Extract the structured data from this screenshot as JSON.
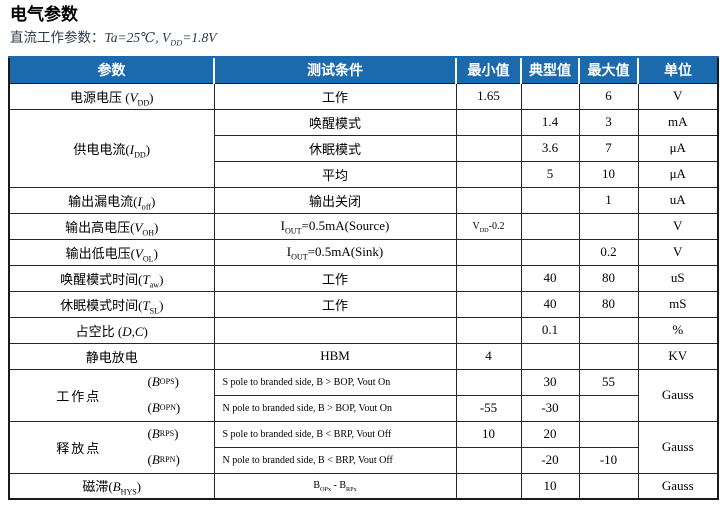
{
  "title": "电气参数",
  "subtitle": {
    "prefix": "直流工作参数：",
    "formula": "Ta=25℃, V_{DD}=1.8V"
  },
  "colors": {
    "header_bg": "#1b6aad",
    "header_text": "#ffffff",
    "subtitle_text": "#2b3b4a",
    "border": "#1a1a1a"
  },
  "table": {
    "headers": [
      "参数",
      "测试条件",
      "最小值",
      "典型值",
      "最大值",
      "单位"
    ],
    "rows": [
      {
        "cells": [
          {
            "t": "电源电压 (~V~_{DD})"
          },
          {
            "t": "工作"
          },
          {
            "t": "1.65"
          },
          {
            "t": ""
          },
          {
            "t": "6"
          },
          {
            "t": "V"
          }
        ]
      },
      {
        "cells": [
          {
            "t": "供电电流(~I~_{DD})",
            "rs": 3
          },
          {
            "t": "唤醒模式"
          },
          {
            "t": ""
          },
          {
            "t": "1.4"
          },
          {
            "t": "3"
          },
          {
            "t": "mA"
          }
        ]
      },
      {
        "cells": [
          {
            "t": "休眠模式"
          },
          {
            "t": ""
          },
          {
            "t": "3.6"
          },
          {
            "t": "7"
          },
          {
            "t": "μA"
          }
        ]
      },
      {
        "cells": [
          {
            "t": "平均"
          },
          {
            "t": ""
          },
          {
            "t": "5"
          },
          {
            "t": "10"
          },
          {
            "t": "μA"
          }
        ]
      },
      {
        "cells": [
          {
            "t": "输出漏电流(~I~_{off})"
          },
          {
            "t": "输出关闭"
          },
          {
            "t": ""
          },
          {
            "t": ""
          },
          {
            "t": "1"
          },
          {
            "t": "uA"
          }
        ]
      },
      {
        "cells": [
          {
            "t": "输出高电压(~V~_{OH})"
          },
          {
            "t": "I_{OUT}=0.5mA(Source)"
          },
          {
            "t": "V_{DD}-0.2",
            "small": true
          },
          {
            "t": ""
          },
          {
            "t": ""
          },
          {
            "t": "V"
          }
        ]
      },
      {
        "cells": [
          {
            "t": "输出低电压(~V~_{OL})"
          },
          {
            "t": "I_{OUT}=0.5mA(Sink)"
          },
          {
            "t": ""
          },
          {
            "t": ""
          },
          {
            "t": "0.2"
          },
          {
            "t": "V"
          }
        ]
      },
      {
        "cells": [
          {
            "t": "唤醒模式时间(~T~_{aw})"
          },
          {
            "t": "工作"
          },
          {
            "t": ""
          },
          {
            "t": "40"
          },
          {
            "t": "80"
          },
          {
            "t": "uS"
          }
        ]
      },
      {
        "cells": [
          {
            "t": "休眠模式时间(~T~_{SL})"
          },
          {
            "t": "工作"
          },
          {
            "t": ""
          },
          {
            "t": "40"
          },
          {
            "t": "80"
          },
          {
            "t": "mS"
          }
        ]
      },
      {
        "cells": [
          {
            "t": "占空比 (~D,C~)"
          },
          {
            "t": ""
          },
          {
            "t": ""
          },
          {
            "t": "0.1"
          },
          {
            "t": ""
          },
          {
            "t": "%"
          }
        ]
      },
      {
        "cells": [
          {
            "t": "静电放电"
          },
          {
            "t": "HBM"
          },
          {
            "t": "4"
          },
          {
            "t": ""
          },
          {
            "t": ""
          },
          {
            "t": "KV"
          }
        ]
      },
      {
        "cells": [
          {
            "group": {
              "name": "工作点",
              "subs": [
                "(~B~_{OPS})",
                "(~B~_{OPN})"
              ]
            },
            "rs": 2
          },
          {
            "t": "S pole to branded side, B > BOP, Vout On",
            "small": true,
            "align": "left"
          },
          {
            "t": ""
          },
          {
            "t": "30"
          },
          {
            "t": "55"
          },
          {
            "t": "Gauss",
            "rs": 2
          }
        ]
      },
      {
        "cells": [
          {
            "t": "N pole to branded side, B > BOP, Vout On",
            "small": true,
            "align": "left"
          },
          {
            "t": "-55"
          },
          {
            "t": "-30"
          },
          {
            "t": ""
          }
        ]
      },
      {
        "cells": [
          {
            "group": {
              "name": "释放点",
              "subs": [
                "(~B~_{RPS})",
                "(~B~_{RPN})"
              ]
            },
            "rs": 2
          },
          {
            "t": "S pole to branded side, B < BRP, Vout Off",
            "small": true,
            "align": "left"
          },
          {
            "t": "10"
          },
          {
            "t": "20"
          },
          {
            "t": ""
          },
          {
            "t": "Gauss",
            "rs": 2
          }
        ]
      },
      {
        "cells": [
          {
            "t": "N pole to branded side, B < BRP, Vout Off",
            "small": true,
            "align": "left"
          },
          {
            "t": ""
          },
          {
            "t": "-20"
          },
          {
            "t": "-10"
          }
        ]
      },
      {
        "cells": [
          {
            "t": "磁滞(~B~_{HYS})"
          },
          {
            "t": "B_{OPx} - B_{RPx}",
            "small": true
          },
          {
            "t": ""
          },
          {
            "t": "10"
          },
          {
            "t": ""
          },
          {
            "t": "Gauss"
          }
        ]
      }
    ]
  }
}
